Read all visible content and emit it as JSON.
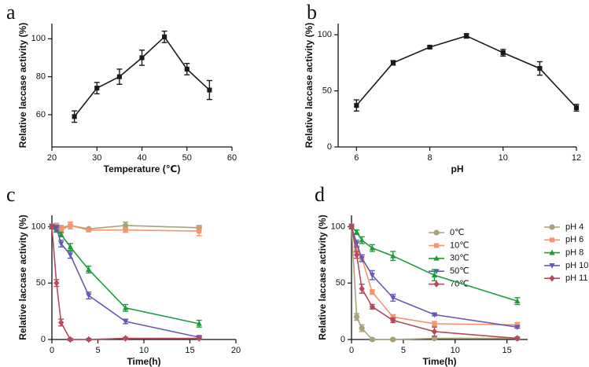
{
  "chart_data": [
    {
      "type": "line",
      "panel": "a",
      "xlabel": "Temperature (℃)",
      "ylabel": "Relative laccase activity (%)",
      "x": [
        25,
        30,
        35,
        40,
        45,
        50,
        55
      ],
      "series": [
        {
          "color": "#1a1a1a",
          "marker": "square",
          "values": [
            59,
            74,
            80,
            90,
            101,
            84,
            73
          ],
          "errors": [
            3,
            3,
            4,
            4,
            3,
            3,
            5
          ]
        }
      ],
      "xlim": [
        20,
        60
      ],
      "xticks": [
        20,
        30,
        40,
        50,
        60
      ],
      "ylim": [
        43,
        108
      ],
      "yticks": [
        60,
        80,
        100
      ],
      "grid": false
    },
    {
      "type": "line",
      "panel": "b",
      "xlabel": "pH",
      "ylabel": "Relative laccase activity (%)",
      "x": [
        6,
        7,
        8,
        9,
        10,
        11,
        12
      ],
      "series": [
        {
          "color": "#1a1a1a",
          "marker": "square",
          "values": [
            37,
            75,
            89,
            99,
            84,
            70,
            35
          ],
          "errors": [
            5,
            2,
            1,
            2,
            3,
            6,
            3
          ]
        }
      ],
      "xlim": [
        5.5,
        12
      ],
      "xticks": [
        6,
        8,
        10,
        12
      ],
      "ylim": [
        0,
        110
      ],
      "yticks": [
        0,
        50,
        100
      ],
      "grid": false
    },
    {
      "type": "line",
      "panel": "c",
      "xlabel": "Time(h)",
      "ylabel": "Relative laccase activity (%)",
      "x": [
        0,
        0.5,
        1,
        2,
        4,
        8,
        16
      ],
      "series": [
        {
          "name": "0℃",
          "color": "#a8a27a",
          "marker": "circle",
          "values": [
            100,
            100,
            99,
            101,
            98,
            101,
            99
          ],
          "errors": [
            2,
            2,
            2,
            3,
            1,
            3,
            2
          ]
        },
        {
          "name": "10℃",
          "color": "#f4956e",
          "marker": "square",
          "values": [
            100,
            100,
            97,
            101,
            97,
            97,
            96
          ],
          "errors": [
            2,
            3,
            3,
            3,
            1,
            2,
            4
          ]
        },
        {
          "name": "30℃",
          "color": "#1d9d3a",
          "marker": "triangle",
          "values": [
            100,
            97,
            93,
            82,
            62,
            28,
            14
          ],
          "errors": [
            2,
            2,
            2,
            3,
            3,
            3,
            3
          ]
        },
        {
          "name": "50℃",
          "color": "#6559b4",
          "marker": "triangle-down",
          "values": [
            100,
            99,
            85,
            75,
            39,
            16,
            2
          ],
          "errors": [
            2,
            2,
            3,
            3,
            3,
            2,
            1
          ]
        },
        {
          "name": "70℃",
          "color": "#b34a5d",
          "marker": "diamond",
          "values": [
            100,
            50,
            15,
            0,
            0,
            1,
            1
          ],
          "errors": [
            2,
            3,
            3,
            1,
            1,
            1,
            1
          ]
        }
      ],
      "xlim": [
        0,
        20
      ],
      "xticks": [
        0,
        5,
        10,
        15,
        20
      ],
      "ylim": [
        0,
        110
      ],
      "yticks": [
        0,
        50,
        100
      ],
      "grid": false
    },
    {
      "type": "line",
      "panel": "d",
      "xlabel": "Time(h)",
      "ylabel": "Relative laccase activity (%)",
      "x": [
        0,
        0.5,
        1,
        2,
        4,
        8,
        16
      ],
      "series": [
        {
          "name": "pH 4",
          "color": "#a8a27a",
          "marker": "circle",
          "values": [
            100,
            20,
            10,
            0,
            0,
            1,
            1
          ],
          "errors": [
            2,
            3,
            3,
            1,
            1,
            1,
            1
          ]
        },
        {
          "name": "pH 6",
          "color": "#f4956e",
          "marker": "square",
          "values": [
            100,
            80,
            72,
            42,
            20,
            14,
            13
          ],
          "errors": [
            2,
            3,
            3,
            2,
            2,
            2,
            2
          ]
        },
        {
          "name": "pH 8",
          "color": "#1d9d3a",
          "marker": "triangle",
          "values": [
            100,
            95,
            88,
            81,
            74,
            57,
            34
          ],
          "errors": [
            2,
            2,
            3,
            3,
            4,
            5,
            3
          ]
        },
        {
          "name": "pH 10",
          "color": "#6559b4",
          "marker": "triangle-down",
          "values": [
            100,
            85,
            72,
            57,
            37,
            22,
            11
          ],
          "errors": [
            2,
            3,
            3,
            4,
            3,
            1,
            1
          ]
        },
        {
          "name": "pH 11",
          "color": "#b34a5d",
          "marker": "diamond",
          "values": [
            100,
            75,
            45,
            29,
            17,
            7,
            1
          ],
          "errors": [
            2,
            3,
            4,
            2,
            2,
            4,
            1
          ]
        }
      ],
      "xlim": [
        0,
        17
      ],
      "xticks": [
        0,
        5,
        10,
        15
      ],
      "ylim": [
        0,
        110
      ],
      "yticks": [
        0,
        50,
        100
      ],
      "grid": false
    }
  ]
}
